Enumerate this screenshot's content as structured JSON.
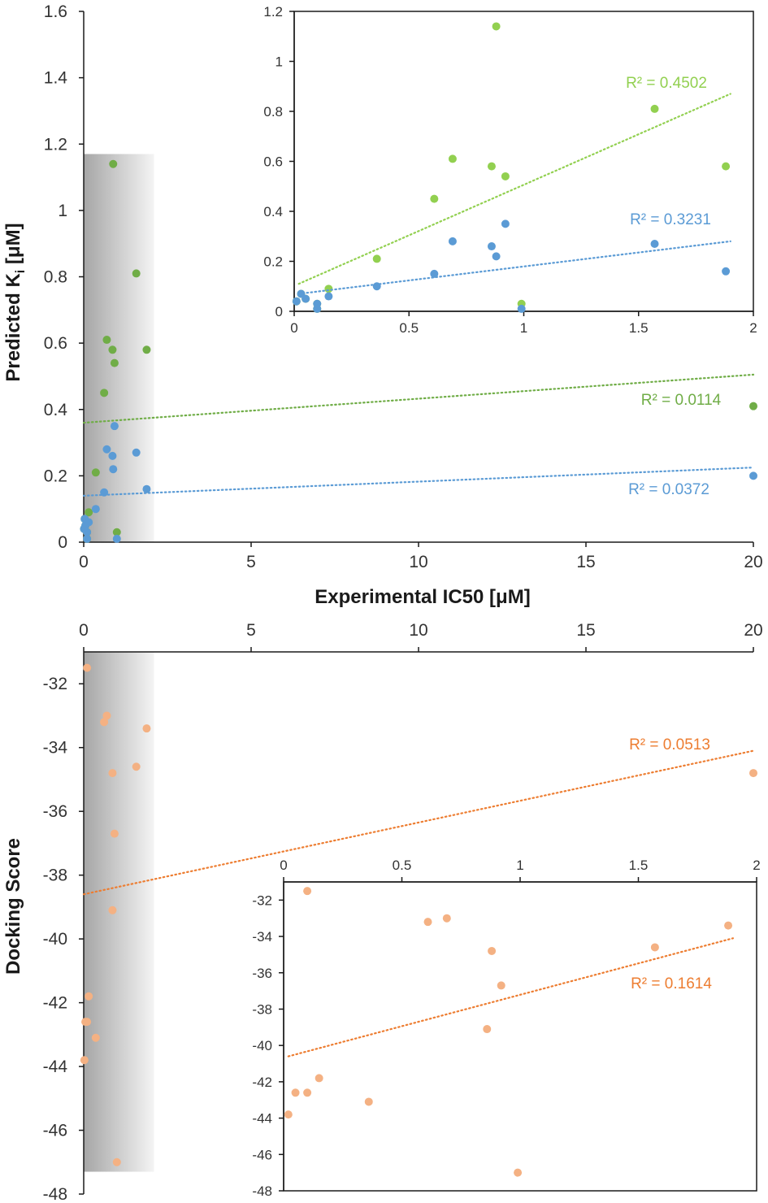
{
  "chart_data": [
    {
      "id": "top_main",
      "type": "scatter",
      "xlabel": "Experimental IC50 [μM]",
      "ylabel": "Predicted Ki [μM]",
      "xlim": [
        0,
        20
      ],
      "ylim": [
        0,
        1.6
      ],
      "xticks": [
        "0",
        "5",
        "10",
        "15",
        "20"
      ],
      "yticks": [
        "0",
        "0.2",
        "0.4",
        "0.6",
        "0.8",
        "1",
        "1.2",
        "1.4",
        "1.6"
      ],
      "shaded_region": {
        "x": [
          0,
          2.1
        ],
        "y": [
          0,
          1.17
        ]
      },
      "series": [
        {
          "color": "#70ad47",
          "points": [
            [
              0.01,
              0.04
            ],
            [
              0.03,
              0.07
            ],
            [
              0.05,
              0.05
            ],
            [
              0.1,
              0.03
            ],
            [
              0.1,
              0.01
            ],
            [
              0.15,
              0.09
            ],
            [
              0.36,
              0.21
            ],
            [
              0.61,
              0.45
            ],
            [
              0.69,
              0.61
            ],
            [
              0.86,
              0.58
            ],
            [
              0.88,
              1.14
            ],
            [
              0.92,
              0.54
            ],
            [
              0.99,
              0.03
            ],
            [
              1.57,
              0.81
            ],
            [
              1.88,
              0.58
            ],
            [
              20,
              0.41
            ]
          ],
          "trendline": {
            "x": [
              0,
              20
            ],
            "y": [
              0.36,
              0.505
            ],
            "label": "R² = 0.0114"
          }
        },
        {
          "color": "#5b9bd5",
          "points": [
            [
              0.01,
              0.04
            ],
            [
              0.03,
              0.07
            ],
            [
              0.05,
              0.05
            ],
            [
              0.1,
              0.03
            ],
            [
              0.1,
              0.01
            ],
            [
              0.15,
              0.06
            ],
            [
              0.36,
              0.1
            ],
            [
              0.61,
              0.15
            ],
            [
              0.69,
              0.28
            ],
            [
              0.86,
              0.26
            ],
            [
              0.88,
              0.22
            ],
            [
              0.92,
              0.35
            ],
            [
              0.99,
              0.01
            ],
            [
              1.57,
              0.27
            ],
            [
              1.88,
              0.16
            ],
            [
              20,
              0.2
            ]
          ],
          "trendline": {
            "x": [
              0,
              20
            ],
            "y": [
              0.14,
              0.225
            ],
            "label": "R² = 0.0372"
          }
        }
      ]
    },
    {
      "id": "top_inset",
      "type": "scatter",
      "xlim": [
        0,
        2
      ],
      "ylim": [
        0,
        1.2
      ],
      "xticks": [
        "0",
        "0.5",
        "1",
        "1.5",
        "2"
      ],
      "yticks": [
        "0",
        "0.2",
        "0.4",
        "0.6",
        "0.8",
        "1",
        "1.2"
      ],
      "series": [
        {
          "color": "#92d050",
          "points": [
            [
              0.01,
              0.04
            ],
            [
              0.03,
              0.07
            ],
            [
              0.05,
              0.05
            ],
            [
              0.1,
              0.03
            ],
            [
              0.1,
              0.01
            ],
            [
              0.15,
              0.09
            ],
            [
              0.36,
              0.21
            ],
            [
              0.61,
              0.45
            ],
            [
              0.69,
              0.61
            ],
            [
              0.86,
              0.58
            ],
            [
              0.88,
              1.14
            ],
            [
              0.92,
              0.54
            ],
            [
              0.99,
              0.03
            ],
            [
              1.57,
              0.81
            ],
            [
              1.88,
              0.58
            ]
          ],
          "trendline": {
            "x": [
              0.02,
              1.9
            ],
            "y": [
              0.11,
              0.87
            ],
            "label": "R² = 0.4502"
          }
        },
        {
          "color": "#5b9bd5",
          "points": [
            [
              0.01,
              0.04
            ],
            [
              0.03,
              0.07
            ],
            [
              0.05,
              0.05
            ],
            [
              0.1,
              0.03
            ],
            [
              0.1,
              0.01
            ],
            [
              0.15,
              0.06
            ],
            [
              0.36,
              0.1
            ],
            [
              0.61,
              0.15
            ],
            [
              0.69,
              0.28
            ],
            [
              0.86,
              0.26
            ],
            [
              0.88,
              0.22
            ],
            [
              0.92,
              0.35
            ],
            [
              0.99,
              0.01
            ],
            [
              1.57,
              0.27
            ],
            [
              1.88,
              0.16
            ]
          ],
          "trendline": {
            "x": [
              0.02,
              1.9
            ],
            "y": [
              0.07,
              0.28
            ],
            "label": "R² = 0.3231"
          }
        }
      ]
    },
    {
      "id": "bottom_main",
      "type": "scatter",
      "ylabel": "Docking Score",
      "xlim": [
        0,
        20
      ],
      "ylim": [
        -48,
        -31
      ],
      "xticks": [
        "0",
        "5",
        "10",
        "15",
        "20"
      ],
      "yticks": [
        "-32",
        "-34",
        "-36",
        "-38",
        "-40",
        "-42",
        "-44",
        "-46",
        "-48"
      ],
      "shaded_region": {
        "x": [
          0,
          2.1
        ],
        "y": [
          -47.3,
          -31
        ]
      },
      "series": [
        {
          "color": "#f4b183",
          "points": [
            [
              0.1,
              -31.5
            ],
            [
              0.02,
              -43.8
            ],
            [
              0.05,
              -42.6
            ],
            [
              0.15,
              -41.8
            ],
            [
              0.1,
              -42.6
            ],
            [
              0.36,
              -43.1
            ],
            [
              0.61,
              -33.2
            ],
            [
              0.69,
              -33.0
            ],
            [
              0.86,
              -34.8
            ],
            [
              0.92,
              -36.7
            ],
            [
              0.86,
              -39.1
            ],
            [
              0.99,
              -47.0
            ],
            [
              1.57,
              -34.6
            ],
            [
              1.88,
              -33.4
            ],
            [
              20,
              -34.8
            ]
          ],
          "trendline": {
            "x": [
              0,
              20
            ],
            "y": [
              -38.6,
              -34.1
            ],
            "label": "R² = 0.0513"
          }
        }
      ]
    },
    {
      "id": "bottom_inset",
      "type": "scatter",
      "xlim": [
        0,
        2
      ],
      "ylim": [
        -48,
        -31
      ],
      "xticks": [
        "0",
        "0.5",
        "1",
        "1.5",
        "2"
      ],
      "yticks": [
        "-32",
        "-34",
        "-36",
        "-38",
        "-40",
        "-42",
        "-44",
        "-46",
        "-48"
      ],
      "series": [
        {
          "color": "#f4b183",
          "points": [
            [
              0.1,
              -31.5
            ],
            [
              0.02,
              -43.8
            ],
            [
              0.05,
              -42.6
            ],
            [
              0.15,
              -41.8
            ],
            [
              0.1,
              -42.6
            ],
            [
              0.36,
              -43.1
            ],
            [
              0.61,
              -33.2
            ],
            [
              0.69,
              -33.0
            ],
            [
              0.88,
              -34.8
            ],
            [
              0.92,
              -36.7
            ],
            [
              0.86,
              -39.1
            ],
            [
              0.99,
              -47.0
            ],
            [
              1.57,
              -34.6
            ],
            [
              1.88,
              -33.4
            ]
          ],
          "trendline": {
            "x": [
              0.02,
              1.9
            ],
            "y": [
              -40.6,
              -34.1
            ],
            "label": "R² = 0.1614"
          }
        }
      ]
    }
  ],
  "labels": {
    "top_ylabel_main": "Predicted K",
    "top_ylabel_sub": "i",
    "top_ylabel_unit": " [μM]",
    "top_xlabel": "Experimental IC50 [μM]",
    "bottom_ylabel": "Docking Score"
  },
  "colors": {
    "green_main": "#70ad47",
    "green_inset": "#92d050",
    "blue": "#5b9bd5",
    "orange_point": "#f4b183",
    "orange_line": "#ed7d31",
    "axis": "#1a1a1a"
  }
}
